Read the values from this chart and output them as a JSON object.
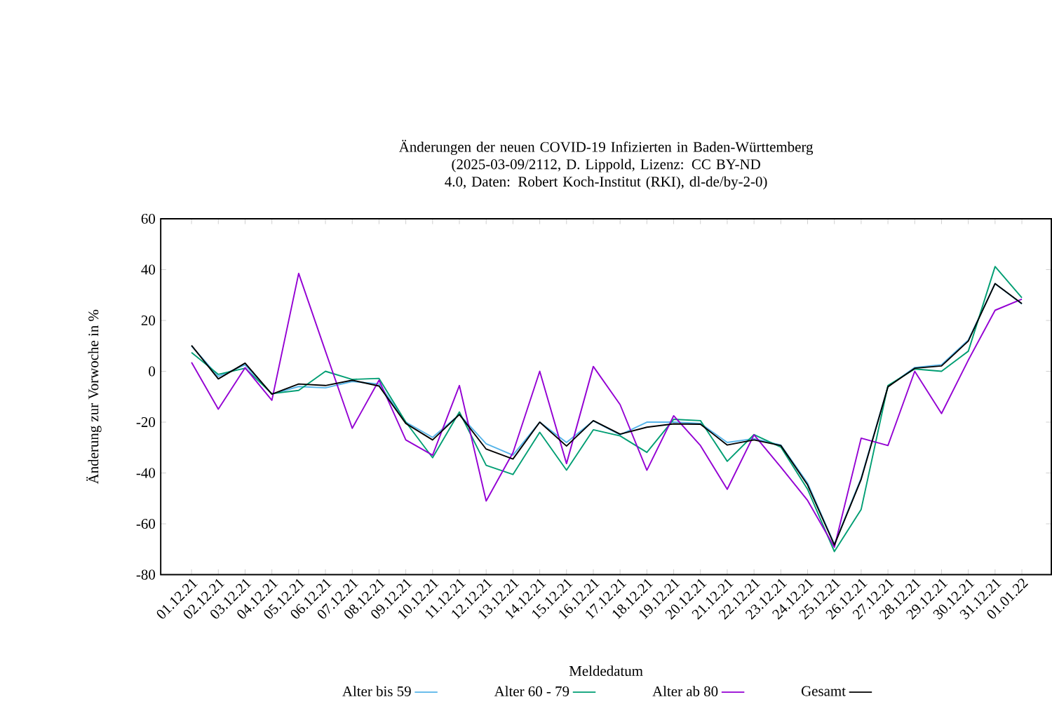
{
  "chart_data": {
    "type": "line",
    "title": "Änderungen der neuen COVID-19 Infizierten in Baden-Württemberg",
    "subtitle": "(2025-03-09/2112, D. Lippold, Lizenz: CC BY-ND 4.0, Daten: Robert Koch-Institut (RKI), dl-de/by-2-0)",
    "xlabel": "Meldedatum",
    "ylabel": "Änderung zur Vorwoche in %",
    "categories": [
      "01.12.21",
      "02.12.21",
      "03.12.21",
      "04.12.21",
      "05.12.21",
      "06.12.21",
      "07.12.21",
      "08.12.21",
      "09.12.21",
      "10.12.21",
      "11.12.21",
      "12.12.21",
      "13.12.21",
      "14.12.21",
      "15.12.21",
      "16.12.21",
      "17.12.21",
      "18.12.21",
      "19.12.21",
      "20.12.21",
      "21.12.21",
      "22.12.21",
      "23.12.21",
      "24.12.21",
      "25.12.21",
      "26.12.21",
      "27.12.21",
      "28.12.21",
      "29.12.21",
      "30.12.21",
      "31.12.21",
      "01.01.22"
    ],
    "ylim": [
      -80,
      60
    ],
    "yticks": [
      -80,
      -60,
      -40,
      -20,
      0,
      20,
      40,
      60
    ],
    "legend": "bottom",
    "series": [
      {
        "name": "Alter bis 59",
        "color": "#56b4e9",
        "values": [
          10,
          -2,
          2.5,
          -9,
          -6,
          -6.5,
          -4,
          -5,
          -20,
          -26,
          -17,
          -28.5,
          -33,
          -20,
          -28,
          -19.5,
          -25,
          -20,
          -20,
          -20.5,
          -28,
          -26.5,
          -29,
          -44,
          -68,
          -42,
          -6,
          1.5,
          2.6,
          12.3,
          34.5,
          26.5
        ]
      },
      {
        "name": "Alter 60 - 79",
        "color": "#009e73",
        "values": [
          7.4,
          -1.2,
          1.2,
          -8.8,
          -7.5,
          0,
          -3.2,
          -2.8,
          -20,
          -34,
          -16,
          -37,
          -40.6,
          -24,
          -38.9,
          -23,
          -25.4,
          -31.9,
          -18.9,
          -19.4,
          -35.4,
          -24.9,
          -29.8,
          -46.4,
          -70.9,
          -54.3,
          -5.6,
          0.9,
          0,
          7.9,
          41.2,
          28.9
        ]
      },
      {
        "name": "Alter ab 80",
        "color": "#9400d3",
        "values": [
          3.5,
          -14.9,
          1.4,
          -11.4,
          38.5,
          7.9,
          -22.4,
          -3.5,
          -27,
          -33,
          -5.6,
          -51,
          -32,
          0,
          -36.3,
          1.9,
          -13.1,
          -38.9,
          -17.5,
          -29.2,
          -46.4,
          -25,
          -37.7,
          -50.8,
          -69.2,
          -26.3,
          -29.2,
          0,
          -16.6,
          4.4,
          24,
          28.4
        ]
      },
      {
        "name": "Gesamt",
        "color": "#000000",
        "values": [
          10.2,
          -3,
          3.2,
          -9,
          -5,
          -5.6,
          -3.5,
          -5.8,
          -20.5,
          -27,
          -17,
          -30.6,
          -34.5,
          -20,
          -29.4,
          -19.4,
          -24.7,
          -22,
          -20.7,
          -20.8,
          -29,
          -27,
          -29.2,
          -44.7,
          -68.3,
          -42.5,
          -6.1,
          1.2,
          2.1,
          11.9,
          34.5,
          26.6
        ]
      }
    ]
  }
}
